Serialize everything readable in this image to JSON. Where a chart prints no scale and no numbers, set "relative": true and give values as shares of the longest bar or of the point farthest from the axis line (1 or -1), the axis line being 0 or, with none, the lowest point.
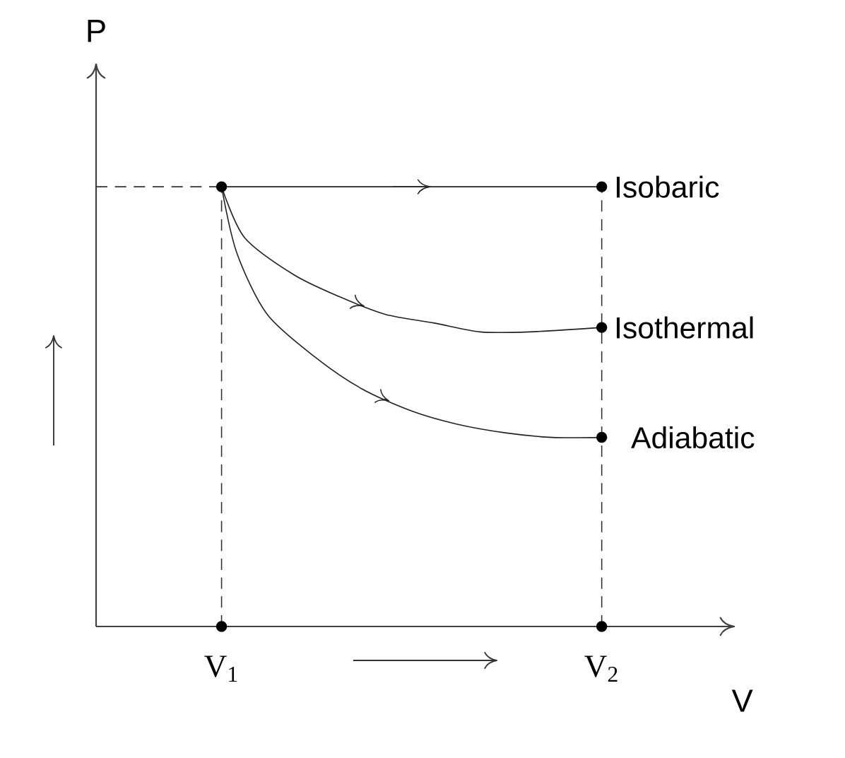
{
  "chart_data": {
    "type": "line",
    "relative": true,
    "xlabel": "V",
    "ylabel": "P",
    "xlim": [
      0.67,
      2.35
    ],
    "xticks": [
      {
        "value": 1,
        "label": "V$_{1}$"
      },
      {
        "value": 2,
        "label": "V$_{2}$"
      }
    ],
    "series": [
      {
        "name": "Isobaric",
        "color": "#222222",
        "marker": "none",
        "x": [
          1,
          2
        ],
        "values": [
          1,
          1
        ]
      },
      {
        "name": "Isothermal",
        "color": "#222222",
        "marker": "none",
        "x": [
          1,
          1.06,
          1.19,
          1.31,
          1.43,
          1.56,
          1.68,
          1.81,
          2
        ],
        "values": [
          1,
          0.885,
          0.8,
          0.75,
          0.71,
          0.69,
          0.67,
          0.67,
          0.68
        ]
      },
      {
        "name": "Adiabatic",
        "color": "#222222",
        "marker": "none",
        "x": [
          1,
          1.04,
          1.12,
          1.25,
          1.37,
          1.5,
          1.62,
          1.75,
          1.87,
          2
        ],
        "values": [
          1,
          0.85,
          0.71,
          0.61,
          0.54,
          0.49,
          0.46,
          0.44,
          0.43,
          0.43
        ]
      },
      {
        "type": "scatter",
        "marker": "circle",
        "color": "#000000",
        "x": [
          1,
          2,
          1,
          2,
          2,
          2
        ],
        "values": [
          0,
          0,
          1,
          1,
          0.68,
          0.43
        ]
      }
    ],
    "ref_lines": [
      {
        "axis": "y",
        "value": 1,
        "color": "#333333",
        "line_style": "dashed"
      },
      {
        "axis": "x",
        "value": 1,
        "color": "#333333",
        "line_style": "dashed"
      },
      {
        "axis": "x",
        "value": 2,
        "color": "#333333",
        "line_style": "dashed"
      }
    ],
    "legend": false,
    "grid": false
  }
}
